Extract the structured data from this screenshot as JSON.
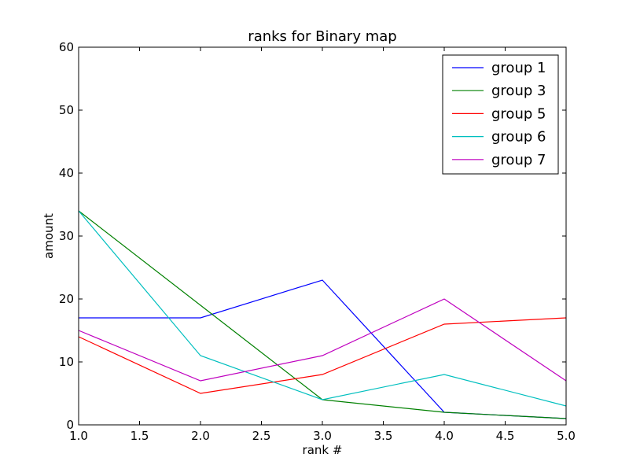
{
  "chart_data": {
    "type": "line",
    "title": "ranks for Binary map",
    "xlabel": "rank #",
    "ylabel": "amount",
    "xlim": [
      1.0,
      5.0
    ],
    "ylim": [
      0,
      60
    ],
    "x": [
      1,
      2,
      3,
      4,
      5
    ],
    "x_ticks": [
      "1.0",
      "1.5",
      "2.0",
      "2.5",
      "3.0",
      "3.5",
      "4.0",
      "4.5",
      "5.0"
    ],
    "y_ticks": [
      "0",
      "10",
      "20",
      "30",
      "40",
      "50",
      "60"
    ],
    "grid": false,
    "legend_position": "top-right",
    "series": [
      {
        "name": "group 1",
        "color": "#0000ff",
        "values": [
          17,
          17,
          23,
          2,
          1
        ]
      },
      {
        "name": "group 3",
        "color": "#008000",
        "values": [
          34,
          19,
          4,
          2,
          1
        ]
      },
      {
        "name": "group 5",
        "color": "#ff0000",
        "values": [
          14,
          5,
          8,
          16,
          17
        ]
      },
      {
        "name": "group 6",
        "color": "#00bfbf",
        "values": [
          34,
          11,
          4,
          8,
          3
        ]
      },
      {
        "name": "group 7",
        "color": "#bf00bf",
        "values": [
          15,
          7,
          11,
          20,
          7
        ]
      }
    ]
  }
}
